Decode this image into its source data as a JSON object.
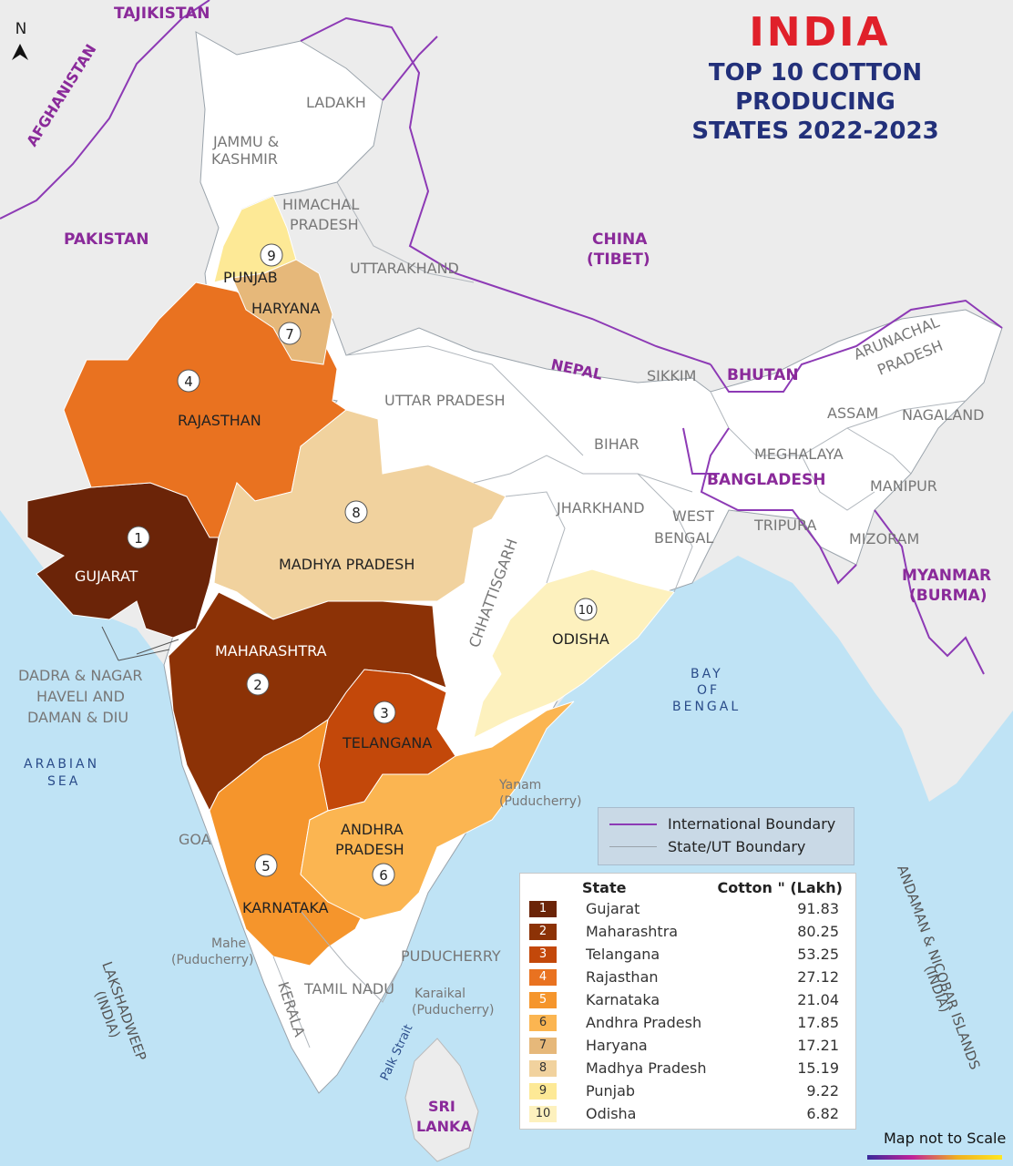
{
  "title": {
    "main": "INDIA",
    "sub_line1": "TOP 10 COTTON PRODUCING",
    "sub_line2": "STATES 2022-2023"
  },
  "north_label": "N",
  "boundary_legend": {
    "international": "International Boundary",
    "state": "State/UT Boundary"
  },
  "legend": {
    "header_state": "State",
    "header_value": "Cotton \" (Lakh)",
    "rows": [
      {
        "rank": "1",
        "state": "Gujarat",
        "value": "91.83",
        "color": "#6b2408",
        "text_color": "#ffffff"
      },
      {
        "rank": "2",
        "state": "Maharashtra",
        "value": "80.25",
        "color": "#8c3206",
        "text_color": "#ffffff"
      },
      {
        "rank": "3",
        "state": "Telangana",
        "value": "53.25",
        "color": "#c3480a",
        "text_color": "#ffffff"
      },
      {
        "rank": "4",
        "state": "Rajasthan",
        "value": "27.12",
        "color": "#e97220",
        "text_color": "#ffffff"
      },
      {
        "rank": "5",
        "state": "Karnataka",
        "value": "21.04",
        "color": "#f5952c",
        "text_color": "#ffffff"
      },
      {
        "rank": "6",
        "state": "Andhra Pradesh",
        "value": "17.85",
        "color": "#fbb551",
        "text_color": "#333333"
      },
      {
        "rank": "7",
        "state": "Haryana",
        "value": "17.21",
        "color": "#e6b87a",
        "text_color": "#333333"
      },
      {
        "rank": "8",
        "state": "Madhya Pradesh",
        "value": "15.19",
        "color": "#f1d29e",
        "text_color": "#333333"
      },
      {
        "rank": "9",
        "state": "Punjab",
        "value": "9.22",
        "color": "#fde996",
        "text_color": "#333333"
      },
      {
        "rank": "10",
        "state": "Odisha",
        "value": "6.82",
        "color": "#fdf1be",
        "text_color": "#333333"
      }
    ]
  },
  "map_labels": {
    "tajikistan": "TAJIKISTAN",
    "afghanistan": "AFGHANISTAN",
    "pakistan": "PAKISTAN",
    "china_1": "CHINA",
    "china_2": "(TIBET)",
    "nepal": "NEPAL",
    "bhutan": "BHUTAN",
    "bangladesh": "BANGLADESH",
    "myanmar_1": "MYANMAR",
    "myanmar_2": "(BURMA)",
    "sri_lanka_1": "SRI",
    "sri_lanka_2": "LANKA",
    "ladakh": "LADAKH",
    "jk_1": "JAMMU &",
    "jk_2": "KASHMIR",
    "hp_1": "HIMACHAL",
    "hp_2": "PRADESH",
    "punjab": "PUNJAB",
    "haryana": "HARYANA",
    "uttarakhand": "UTTARAKHAND",
    "rajasthan": "RAJASTHAN",
    "up": "UTTAR  PRADESH",
    "bihar": "BIHAR",
    "sikkim": "SIKKIM",
    "arunachal_1": "ARUNACHAL",
    "arunachal_2": "PRADESH",
    "assam": "ASSAM",
    "nagaland": "NAGALAND",
    "meghalaya": "MEGHALAYA",
    "manipur": "MANIPUR",
    "tripura": "TRIPURA",
    "mizoram": "MIZORAM",
    "jharkhand": "JHARKHAND",
    "wb_1": "WEST",
    "wb_2": "BENGAL",
    "gujarat": "GUJARAT",
    "mp": "MADHYA  PRADESH",
    "chhattisgarh": "CHHATTISGARH",
    "odisha": "ODISHA",
    "maharashtra": "MAHARASHTRA",
    "telangana": "TELANGANA",
    "ap_1": "ANDHRA",
    "ap_2": "PRADESH",
    "karnataka": "KARNATAKA",
    "goa": "GOA",
    "kerala": "KERALA",
    "tamil_nadu": "TAMIL NADU",
    "puducherry": "PUDUCHERRY",
    "yanam_1": "Yanam",
    "yanam_2": "(Puducherry)",
    "mahe_1": "Mahe",
    "mahe_2": "(Puducherry)",
    "karaikal_1": "Karaikal",
    "karaikal_2": "(Puducherry)",
    "dnh_1": "DADRA & NAGAR",
    "dnh_2": "HAVELI AND",
    "dnh_3": "DAMAN & DIU",
    "arabian_1": "ARABIAN",
    "arabian_2": "SEA",
    "bay_1": "BAY",
    "bay_2": "OF",
    "bay_3": "BENGAL",
    "lakshadweep_1": "LAKSHADWEEP",
    "lakshadweep_2": "(INDIA)",
    "andaman_1": "ANDAMAN & NICOBAR ISLANDS",
    "andaman_2": "(INDIA)",
    "palk_strait": "Palk Strait"
  },
  "rank_markers": [
    "1",
    "2",
    "3",
    "4",
    "5",
    "6",
    "7",
    "8",
    "9",
    "10"
  ],
  "scale_note": "Map not to Scale"
}
